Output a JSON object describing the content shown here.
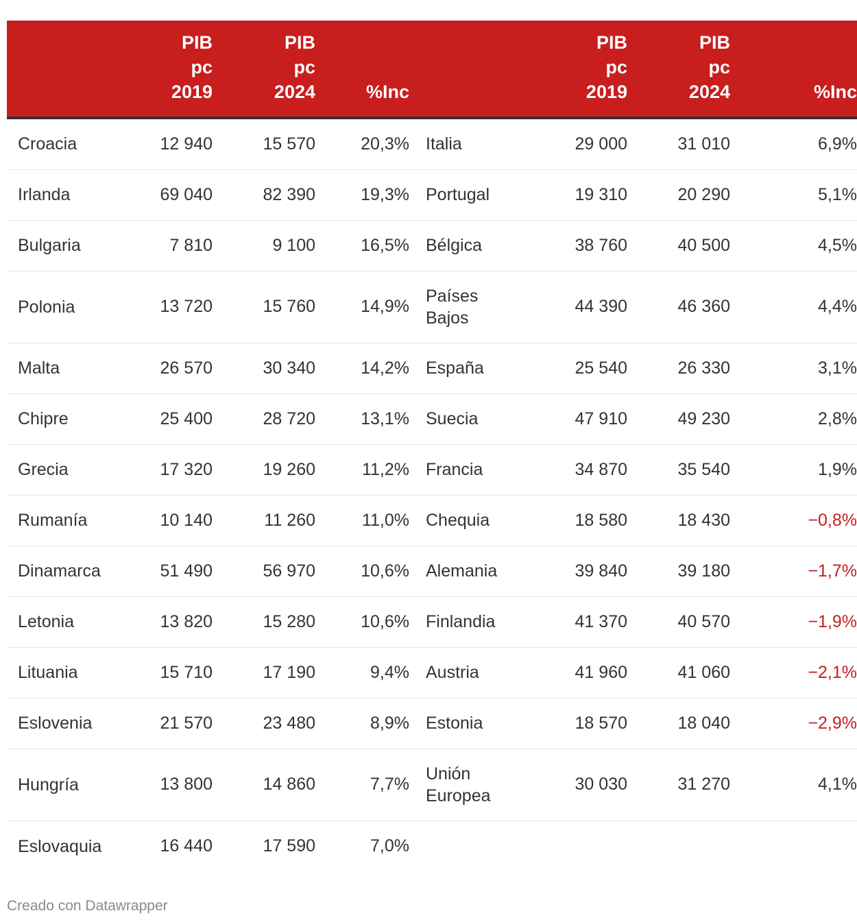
{
  "chart_data": {
    "type": "table",
    "headers_left": [
      {
        "key": "country",
        "lines": [
          ""
        ]
      },
      {
        "key": "pib2019",
        "lines": [
          "PIB",
          "pc",
          "2019"
        ]
      },
      {
        "key": "pib2024",
        "lines": [
          "PIB",
          "pc",
          "2024"
        ]
      },
      {
        "key": "inc",
        "lines": [
          "%Inc"
        ]
      }
    ],
    "headers_right": [
      {
        "key": "country",
        "lines": [
          ""
        ]
      },
      {
        "key": "pib2019",
        "lines": [
          "PIB",
          "pc",
          "2019"
        ]
      },
      {
        "key": "pib2024",
        "lines": [
          "PIB",
          "pc",
          "2024"
        ]
      },
      {
        "key": "inc",
        "lines": [
          "%Inc"
        ]
      }
    ],
    "rows": [
      {
        "left": {
          "country": "Croacia",
          "pib2019": "12 940",
          "pib2024": "15 570",
          "inc": "20,3%"
        },
        "right": {
          "country": "Italia",
          "pib2019": "29 000",
          "pib2024": "31 010",
          "inc": "6,9%"
        }
      },
      {
        "left": {
          "country": "Irlanda",
          "pib2019": "69 040",
          "pib2024": "82 390",
          "inc": "19,3%"
        },
        "right": {
          "country": "Portugal",
          "pib2019": "19 310",
          "pib2024": "20 290",
          "inc": "5,1%"
        }
      },
      {
        "left": {
          "country": "Bulgaria",
          "pib2019": "7 810",
          "pib2024": "9 100",
          "inc": "16,5%"
        },
        "right": {
          "country": "Bélgica",
          "pib2019": "38 760",
          "pib2024": "40 500",
          "inc": "4,5%"
        }
      },
      {
        "left": {
          "country": "Polonia",
          "pib2019": "13 720",
          "pib2024": "15 760",
          "inc": "14,9%"
        },
        "right": {
          "country": "Países Bajos",
          "pib2019": "44 390",
          "pib2024": "46 360",
          "inc": "4,4%"
        }
      },
      {
        "left": {
          "country": "Malta",
          "pib2019": "26 570",
          "pib2024": "30 340",
          "inc": "14,2%"
        },
        "right": {
          "country": "España",
          "pib2019": "25 540",
          "pib2024": "26 330",
          "inc": "3,1%"
        }
      },
      {
        "left": {
          "country": "Chipre",
          "pib2019": "25 400",
          "pib2024": "28 720",
          "inc": "13,1%"
        },
        "right": {
          "country": "Suecia",
          "pib2019": "47 910",
          "pib2024": "49 230",
          "inc": "2,8%"
        }
      },
      {
        "left": {
          "country": "Grecia",
          "pib2019": "17 320",
          "pib2024": "19 260",
          "inc": "11,2%"
        },
        "right": {
          "country": "Francia",
          "pib2019": "34 870",
          "pib2024": "35 540",
          "inc": "1,9%"
        }
      },
      {
        "left": {
          "country": "Rumanía",
          "pib2019": "10 140",
          "pib2024": "11 260",
          "inc": "11,0%"
        },
        "right": {
          "country": "Chequia",
          "pib2019": "18 580",
          "pib2024": "18 430",
          "inc": "−0,8%",
          "negative": true
        }
      },
      {
        "left": {
          "country": "Dinamarca",
          "pib2019": "51 490",
          "pib2024": "56 970",
          "inc": "10,6%"
        },
        "right": {
          "country": "Alemania",
          "pib2019": "39 840",
          "pib2024": "39 180",
          "inc": "−1,7%",
          "negative": true
        }
      },
      {
        "left": {
          "country": "Letonia",
          "pib2019": "13 820",
          "pib2024": "15 280",
          "inc": "10,6%"
        },
        "right": {
          "country": "Finlandia",
          "pib2019": "41 370",
          "pib2024": "40 570",
          "inc": "−1,9%",
          "negative": true
        }
      },
      {
        "left": {
          "country": "Lituania",
          "pib2019": "15 710",
          "pib2024": "17 190",
          "inc": "9,4%"
        },
        "right": {
          "country": "Austria",
          "pib2019": "41 960",
          "pib2024": "41 060",
          "inc": "−2,1%",
          "negative": true
        }
      },
      {
        "left": {
          "country": "Eslovenia",
          "pib2019": "21 570",
          "pib2024": "23 480",
          "inc": "8,9%"
        },
        "right": {
          "country": "Estonia",
          "pib2019": "18 570",
          "pib2024": "18 040",
          "inc": "−2,9%",
          "negative": true
        }
      },
      {
        "left": {
          "country": "Hungría",
          "pib2019": "13 800",
          "pib2024": "14 860",
          "inc": "7,7%"
        },
        "right": {
          "country": "Unión Europea",
          "pib2019": "30 030",
          "pib2024": "31 270",
          "inc": "4,1%"
        }
      },
      {
        "left": {
          "country": "Eslovaquia",
          "pib2019": "16 440",
          "pib2024": "17 590",
          "inc": "7,0%"
        },
        "right": {
          "country": "",
          "pib2019": "",
          "pib2024": "",
          "inc": ""
        }
      }
    ]
  },
  "colors": {
    "header_bg": "#c81e1e",
    "header_text": "#ffffff",
    "negative": "#c81e1e",
    "body_text": "#333333",
    "footer_text": "#8a8a8a"
  },
  "footer": {
    "credit": "Creado con Datawrapper"
  }
}
